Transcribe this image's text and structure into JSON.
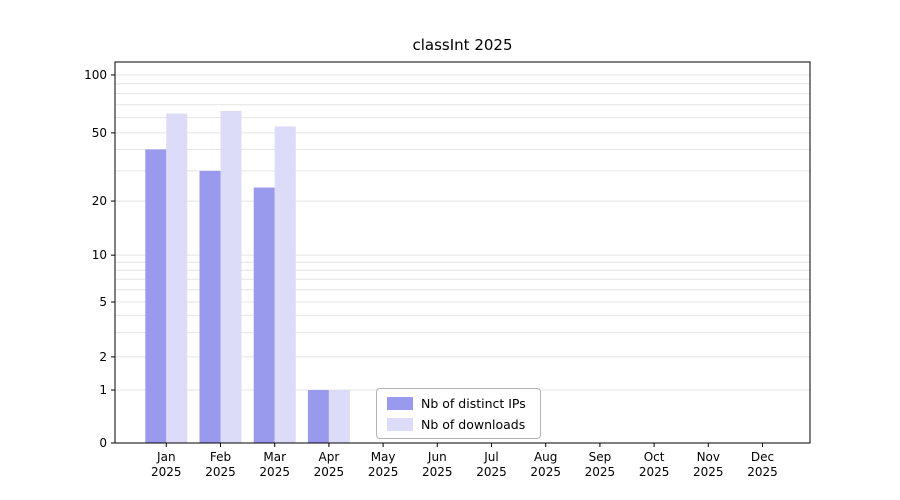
{
  "chart_data": {
    "type": "bar",
    "title": "classInt 2025",
    "categories": [
      "Jan",
      "Feb",
      "Mar",
      "Apr",
      "May",
      "Jun",
      "Jul",
      "Aug",
      "Sep",
      "Oct",
      "Nov",
      "Dec"
    ],
    "year": "2025",
    "series": [
      {
        "name": "Nb of distinct IPs",
        "color": "#9999ee",
        "values": [
          40,
          30,
          24,
          1,
          0,
          0,
          0,
          0,
          0,
          0,
          0,
          0
        ]
      },
      {
        "name": "Nb of downloads",
        "color": "#dcdcf8",
        "values": [
          63,
          65,
          54,
          1,
          0,
          0,
          0,
          0,
          0,
          0,
          0,
          0
        ]
      }
    ],
    "yticks": [
      0,
      1,
      2,
      5,
      10,
      20,
      50,
      100
    ],
    "yaxis_scale": "symlog",
    "ylim": [
      0,
      110
    ],
    "grid": "horizontal-minor-log",
    "legend_position": "lower-center-inside",
    "xlabel": "",
    "ylabel": ""
  }
}
